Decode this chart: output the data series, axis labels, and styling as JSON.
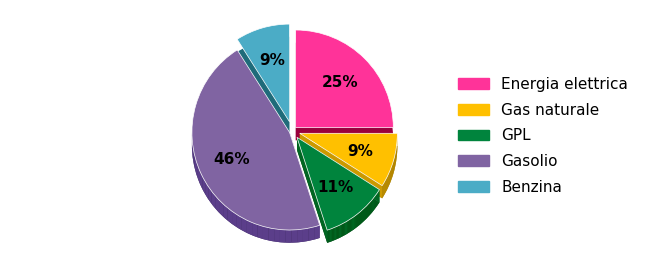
{
  "labels": [
    "Energia elettrica",
    "Gas naturale",
    "GPL",
    "Gasolio",
    "Benzina"
  ],
  "values": [
    25,
    9,
    11,
    46,
    9
  ],
  "colors": [
    "#FF3399",
    "#FFC000",
    "#00843D",
    "#8064A2",
    "#4BACC6"
  ],
  "dark_colors": [
    "#99003D",
    "#7F6000",
    "#003300",
    "#3B2B5E",
    "#1F6B7A"
  ],
  "side_colors": [
    "#CC0066",
    "#CC9900",
    "#006622",
    "#5B3E8A",
    "#2A8FAA"
  ],
  "explode": [
    0.05,
    0.08,
    0.08,
    0.03,
    0.1
  ],
  "startangle": 90,
  "depth": 0.13,
  "pct_fontsize": 11,
  "legend_fontsize": 11,
  "background_color": "#FFFFFF"
}
